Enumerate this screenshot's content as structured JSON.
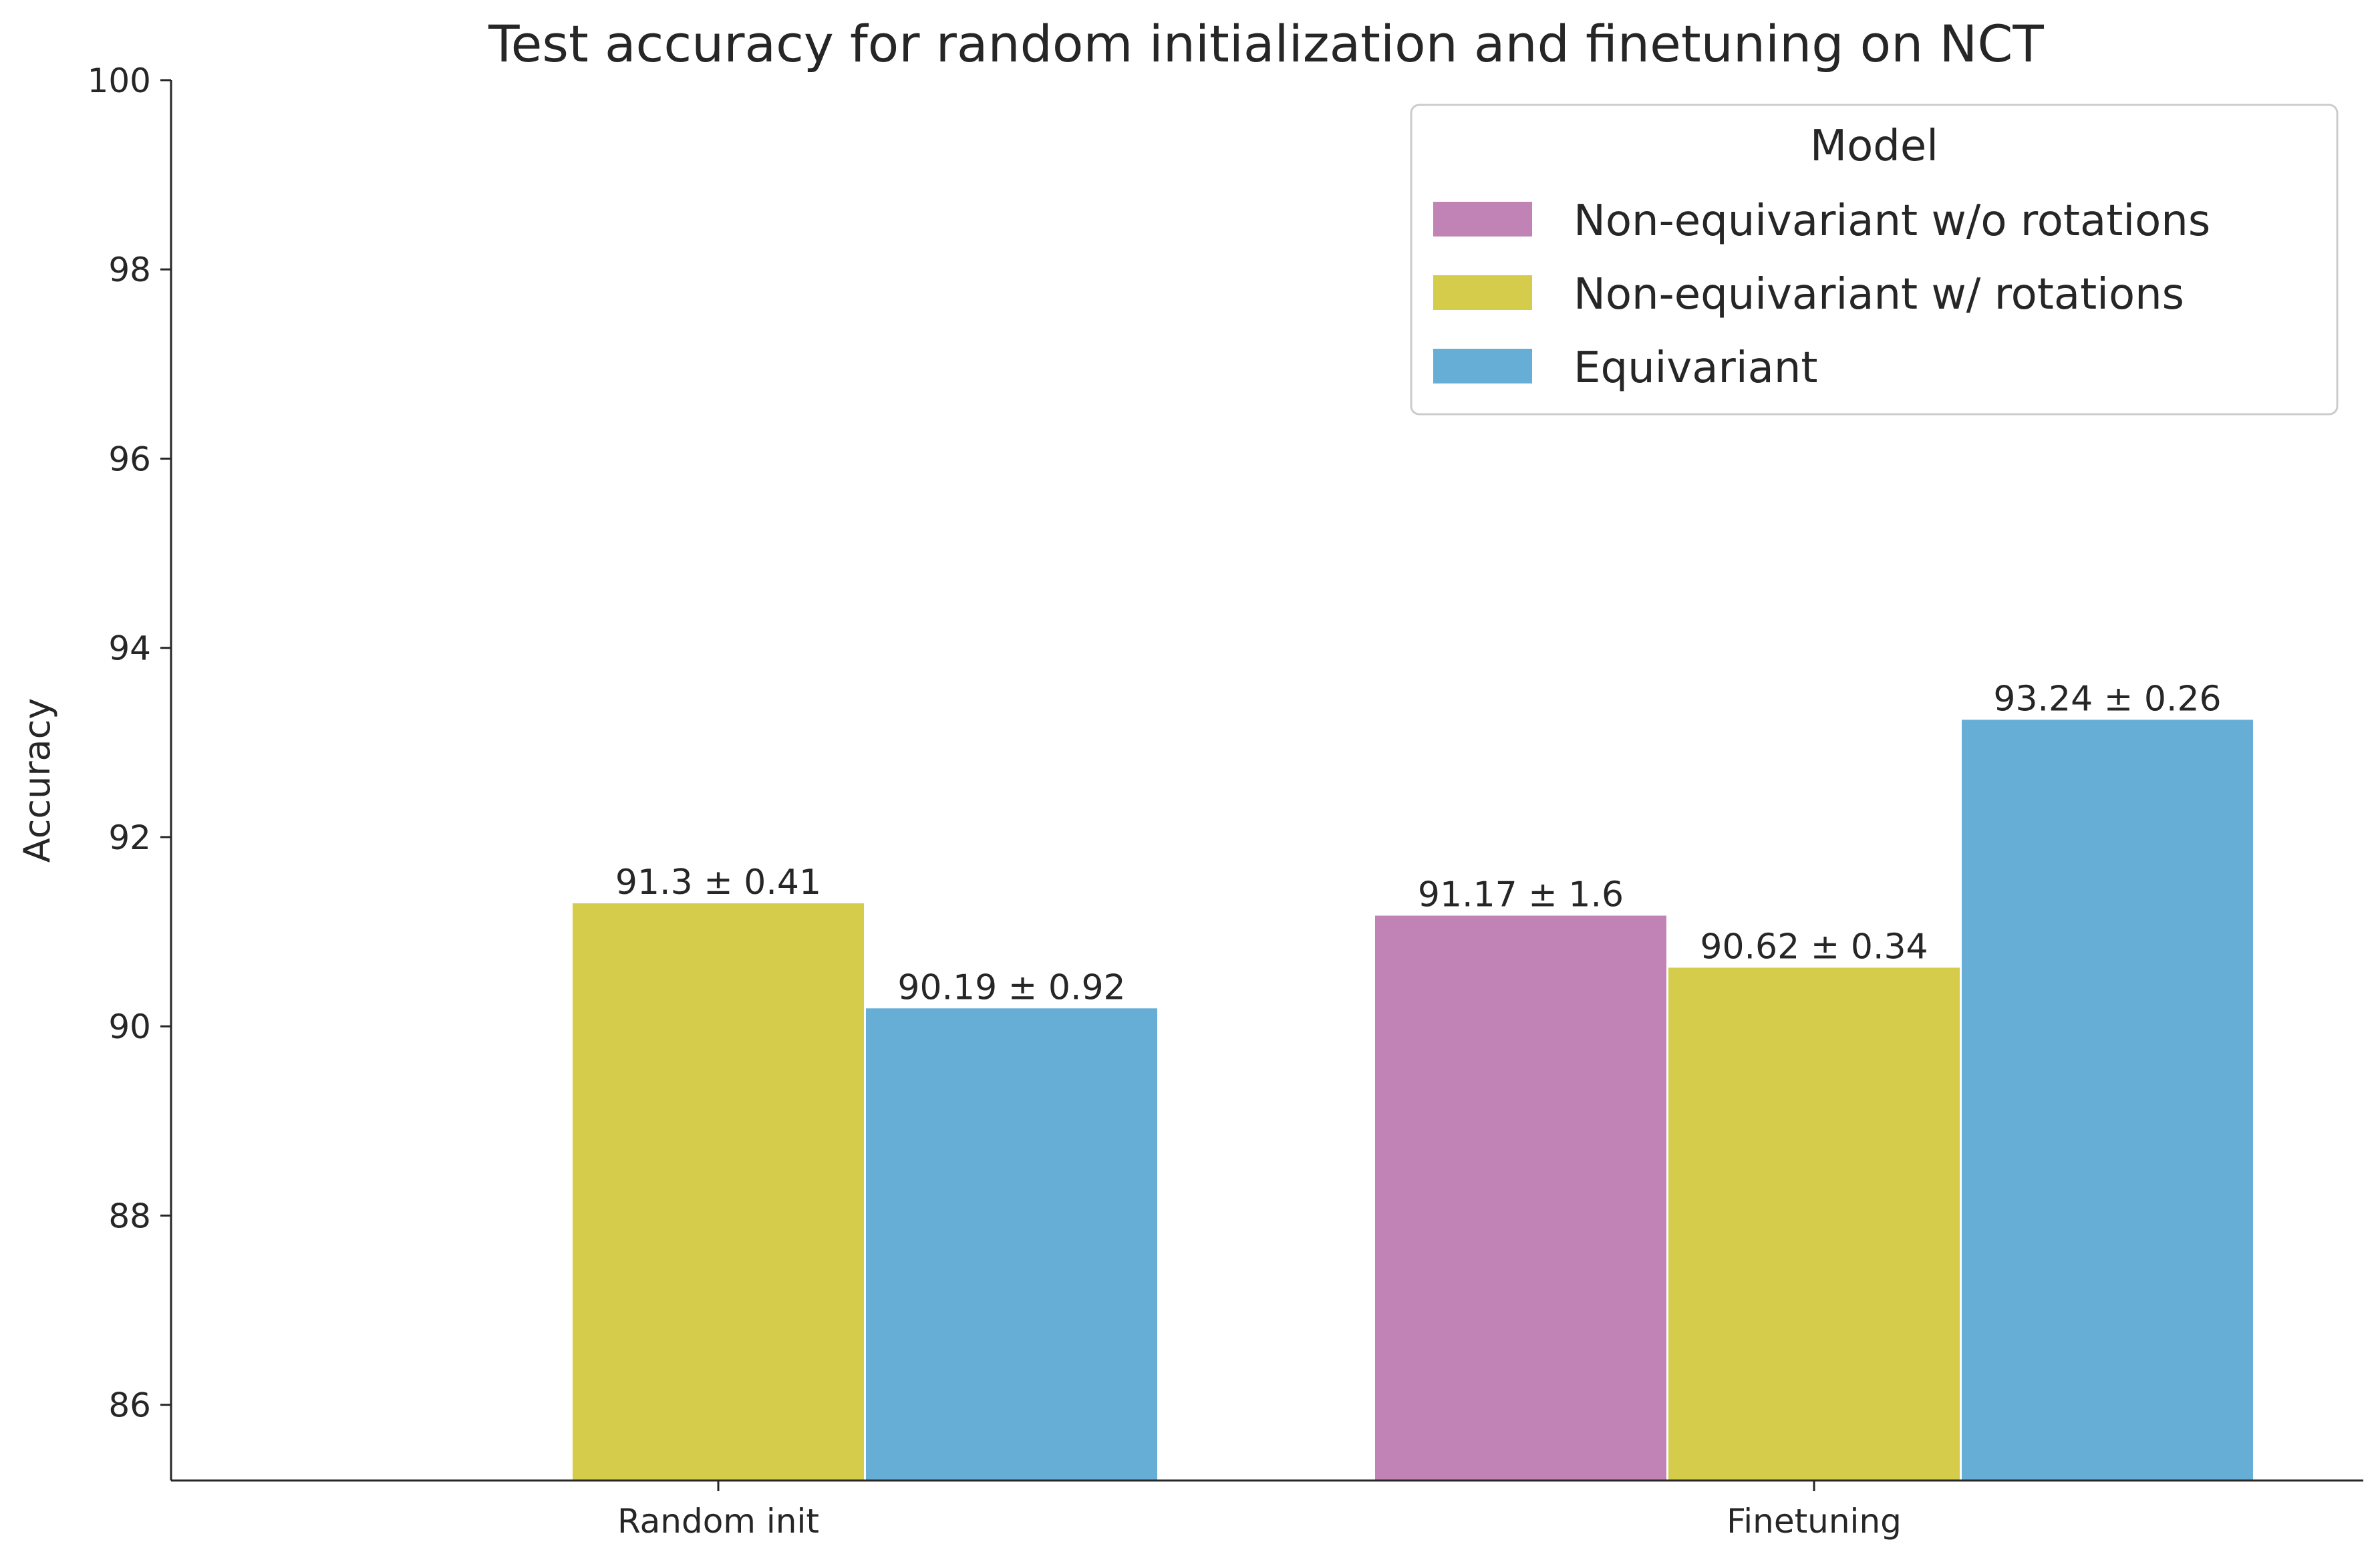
{
  "chart_data": {
    "type": "bar",
    "title": "Test accuracy for random initialization and finetuning on NCT",
    "xlabel": "",
    "ylabel": "Accuracy",
    "categories": [
      "Random init",
      "Finetuning"
    ],
    "ylim": [
      85.2,
      100
    ],
    "yticks": [
      86,
      88,
      90,
      92,
      94,
      96,
      98,
      100
    ],
    "grid": false,
    "legend": {
      "title": "Model",
      "placement": "top-right"
    },
    "series": [
      {
        "name": "Non-equivariant w/o rotations",
        "color": "#c183b5",
        "values": [
          null,
          91.17
        ],
        "labels": [
          "",
          "91.17 ± 1.6"
        ]
      },
      {
        "name": "Non-equivariant w/ rotations",
        "color": "#d4cc4a",
        "values": [
          91.3,
          90.62
        ],
        "labels": [
          "91.3 ± 0.41",
          "90.62 ± 0.34"
        ]
      },
      {
        "name": "Equivariant",
        "color": "#67aed7",
        "values": [
          90.19,
          93.24
        ],
        "labels": [
          "90.19 ± 0.92",
          "93.24 ± 0.26"
        ]
      }
    ]
  }
}
